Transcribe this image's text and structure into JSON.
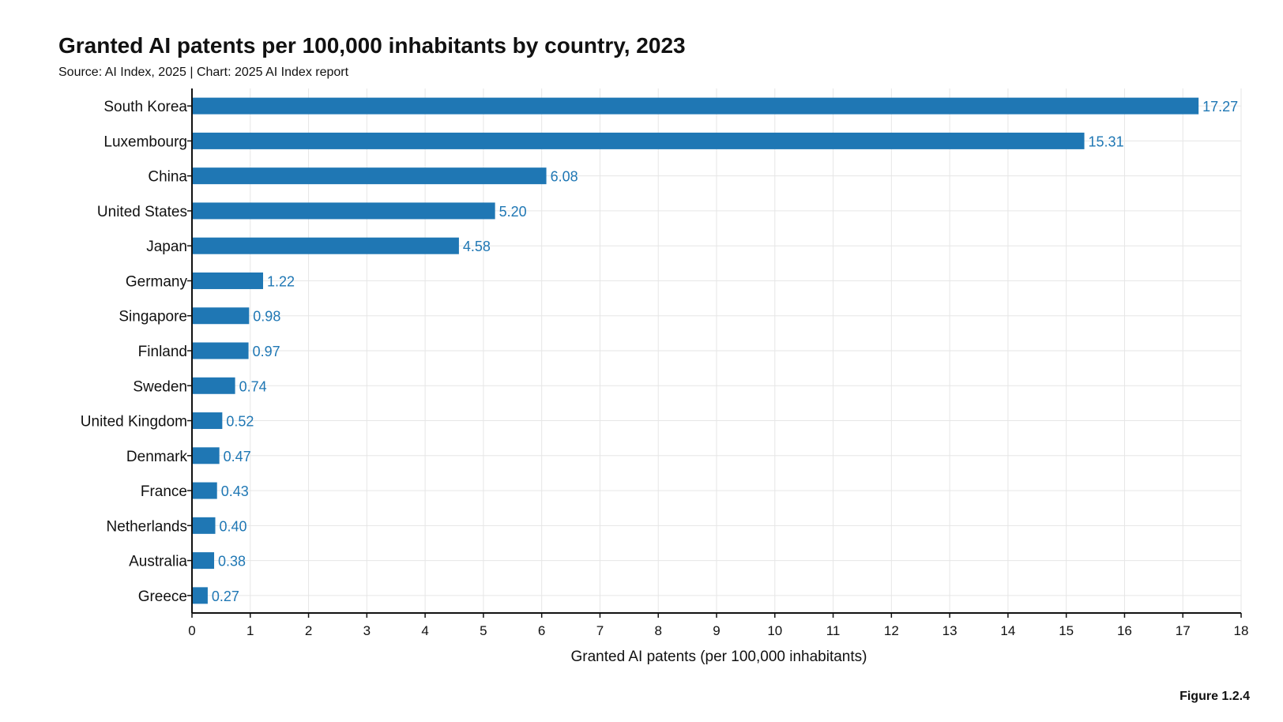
{
  "title": "Granted AI patents per 100,000 inhabitants by country, 2023",
  "subtitle": "Source: AI Index, 2025 | Chart: 2025 AI Index report",
  "figure_label": "Figure 1.2.4",
  "colors": {
    "bar": "#1f77b4",
    "value_label": "#1f77b4",
    "grid": "#e6e6e6",
    "axis": "#111111"
  },
  "chart_data": {
    "type": "bar",
    "orientation": "horizontal",
    "categories": [
      "South Korea",
      "Luxembourg",
      "China",
      "United States",
      "Japan",
      "Germany",
      "Singapore",
      "Finland",
      "Sweden",
      "United Kingdom",
      "Denmark",
      "France",
      "Netherlands",
      "Australia",
      "Greece"
    ],
    "values": [
      17.27,
      15.31,
      6.08,
      5.2,
      4.58,
      1.22,
      0.98,
      0.97,
      0.74,
      0.52,
      0.47,
      0.43,
      0.4,
      0.38,
      0.27
    ],
    "value_labels": [
      "17.27",
      "15.31",
      "6.08",
      "5.20",
      "4.58",
      "1.22",
      "0.98",
      "0.97",
      "0.74",
      "0.52",
      "0.47",
      "0.43",
      "0.40",
      "0.38",
      "0.27"
    ],
    "xlabel": "Granted AI patents (per 100,000 inhabitants)",
    "ylabel": "",
    "xlim": [
      0,
      18
    ],
    "xticks": [
      "0",
      "1",
      "2",
      "3",
      "4",
      "5",
      "6",
      "7",
      "8",
      "9",
      "10",
      "11",
      "12",
      "13",
      "14",
      "15",
      "16",
      "17",
      "18"
    ],
    "grid": true
  }
}
